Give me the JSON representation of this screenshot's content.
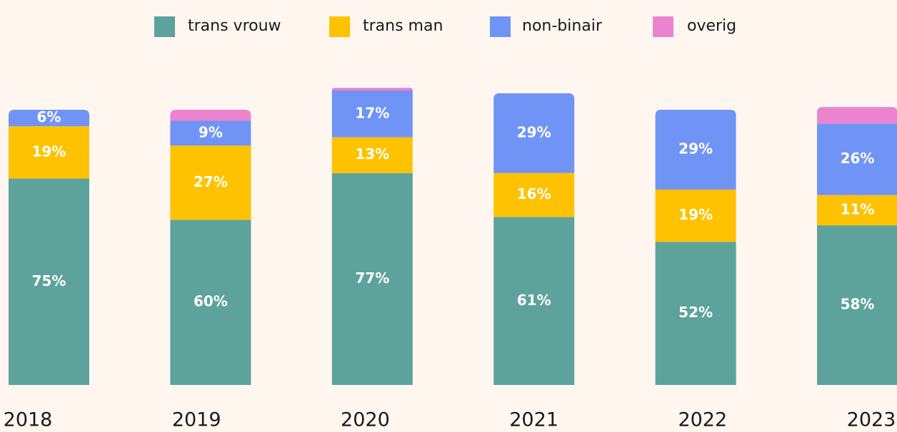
{
  "chart_data": {
    "type": "stacked_bar",
    "categories": [
      "2018",
      "2019",
      "2020",
      "2021",
      "2022",
      "2023"
    ],
    "series": [
      {
        "name": "trans vrouw",
        "color": "#5da39c",
        "values": [
          75,
          60,
          77,
          61,
          52,
          58
        ],
        "value_labels": [
          "75%",
          "60%",
          "77%",
          "61%",
          "52%",
          "58%"
        ]
      },
      {
        "name": "trans man",
        "color": "#ffc200",
        "values": [
          19,
          27,
          13,
          16,
          19,
          11
        ],
        "value_labels": [
          "19%",
          "27%",
          "13%",
          "16%",
          "19%",
          "11%"
        ]
      },
      {
        "name": "non-binair",
        "color": "#7094f5",
        "values": [
          6,
          9,
          17,
          29,
          29,
          26
        ],
        "value_labels": [
          "6%",
          "9%",
          "17%",
          "29%",
          "29%",
          "26%"
        ]
      },
      {
        "name": "overig",
        "color": "#ea84cf",
        "values": [
          0,
          4,
          1,
          0,
          0,
          6
        ],
        "value_labels": [
          null,
          null,
          null,
          null,
          null,
          null
        ]
      }
    ],
    "legend": "top"
  }
}
